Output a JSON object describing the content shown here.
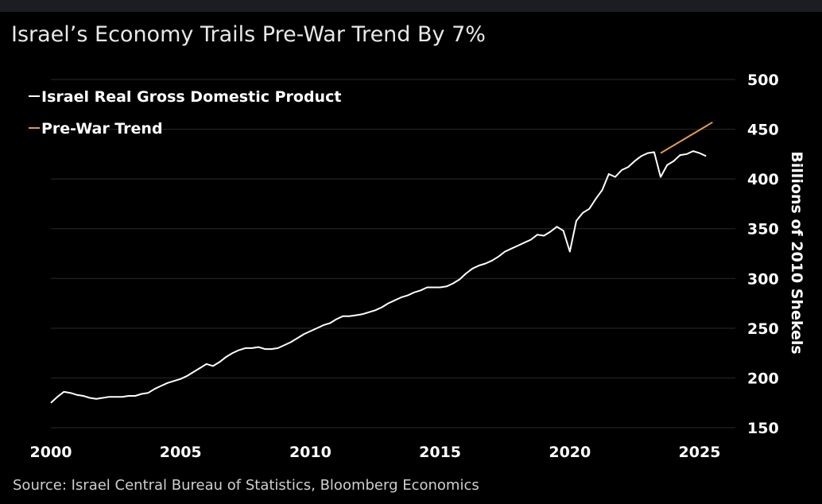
{
  "title": "Israel’s Economy Trails Pre-War Trend By 7%",
  "source": "Source:  Israel Central Bureau of Statistics, Bloomberg Economics",
  "chart_data": {
    "type": "line",
    "title": "Israel’s Economy Trails Pre-War Trend By 7%",
    "xlabel": "",
    "ylabel": "Billions of 2010 Shekels",
    "xlim": [
      2000,
      2026
    ],
    "ylim": [
      150,
      500
    ],
    "x_ticks": [
      "2000",
      "2005",
      "2010",
      "2015",
      "2020",
      "2025"
    ],
    "y_ticks": [
      "150",
      "200",
      "250",
      "300",
      "350",
      "400",
      "450",
      "500"
    ],
    "grid": "horizontal",
    "legend_position": "top-left",
    "colors": {
      "gdp": "#ffffff",
      "trend": "#e09a52",
      "grid": "#2a2a2a",
      "background": "#000000"
    },
    "series": [
      {
        "name": "Israel Real Gross Domestic Product",
        "x": [
          2000.0,
          2000.25,
          2000.5,
          2000.75,
          2001.0,
          2001.25,
          2001.5,
          2001.75,
          2002.0,
          2002.25,
          2002.5,
          2002.75,
          2003.0,
          2003.25,
          2003.5,
          2003.75,
          2004.0,
          2004.25,
          2004.5,
          2004.75,
          2005.0,
          2005.25,
          2005.5,
          2005.75,
          2006.0,
          2006.25,
          2006.5,
          2006.75,
          2007.0,
          2007.25,
          2007.5,
          2007.75,
          2008.0,
          2008.25,
          2008.5,
          2008.75,
          2009.0,
          2009.25,
          2009.5,
          2009.75,
          2010.0,
          2010.25,
          2010.5,
          2010.75,
          2011.0,
          2011.25,
          2011.5,
          2011.75,
          2012.0,
          2012.25,
          2012.5,
          2012.75,
          2013.0,
          2013.25,
          2013.5,
          2013.75,
          2014.0,
          2014.25,
          2014.5,
          2014.75,
          2015.0,
          2015.25,
          2015.5,
          2015.75,
          2016.0,
          2016.25,
          2016.5,
          2016.75,
          2017.0,
          2017.25,
          2017.5,
          2017.75,
          2018.0,
          2018.25,
          2018.5,
          2018.75,
          2019.0,
          2019.25,
          2019.5,
          2019.75,
          2020.0,
          2020.25,
          2020.5,
          2020.75,
          2021.0,
          2021.25,
          2021.5,
          2021.75,
          2022.0,
          2022.25,
          2022.5,
          2022.75,
          2023.0,
          2023.25,
          2023.5,
          2023.75,
          2024.0,
          2024.25,
          2024.5,
          2024.75,
          2025.0,
          2025.25
        ],
        "values": [
          175,
          181,
          186,
          185,
          183,
          182,
          180,
          179,
          180,
          181,
          181,
          181,
          182,
          182,
          184,
          185,
          189,
          192,
          195,
          197,
          199,
          202,
          206,
          210,
          214,
          212,
          216,
          221,
          225,
          228,
          230,
          230,
          231,
          229,
          229,
          230,
          233,
          236,
          240,
          244,
          247,
          250,
          253,
          255,
          259,
          262,
          262,
          263,
          264,
          266,
          268,
          271,
          275,
          278,
          281,
          283,
          286,
          288,
          291,
          291,
          291,
          292,
          295,
          299,
          305,
          310,
          313,
          315,
          318,
          322,
          327,
          330,
          333,
          336,
          339,
          344,
          343,
          347,
          352,
          348,
          327,
          358,
          366,
          370,
          380,
          389,
          405,
          402,
          409,
          412,
          418,
          423,
          426,
          427,
          402,
          414,
          418,
          424,
          425,
          428,
          426,
          423
        ]
      },
      {
        "name": "Pre-War Trend",
        "x": [
          2023.5,
          2025.5
        ],
        "values": [
          426,
          457
        ]
      }
    ]
  }
}
